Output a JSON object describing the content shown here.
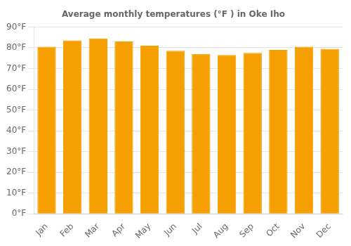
{
  "chart_data": {
    "type": "bar",
    "title": "Average monthly temperatures (°F ) in Oke Iho",
    "categories": [
      "Jan",
      "Feb",
      "Mar",
      "Apr",
      "May",
      "Jun",
      "Jul",
      "Aug",
      "Sep",
      "Oct",
      "Nov",
      "Dec"
    ],
    "values": [
      80.5,
      83.5,
      84.5,
      83.0,
      81.0,
      78.5,
      77.0,
      76.5,
      77.5,
      79.0,
      80.5,
      79.5
    ],
    "color": "#F5A000",
    "ylim": [
      0,
      90
    ],
    "yticks": [
      {
        "value": 0,
        "label": "0°F"
      },
      {
        "value": 10,
        "label": "10°F"
      },
      {
        "value": 20,
        "label": "20°F"
      },
      {
        "value": 30,
        "label": "30°F"
      },
      {
        "value": 40,
        "label": "40°F"
      },
      {
        "value": 50,
        "label": "50°F"
      },
      {
        "value": 60,
        "label": "60°F"
      },
      {
        "value": 70,
        "label": "70°F"
      },
      {
        "value": 80,
        "label": "80°F"
      },
      {
        "value": 90,
        "label": "90°F"
      }
    ],
    "grid": true
  }
}
